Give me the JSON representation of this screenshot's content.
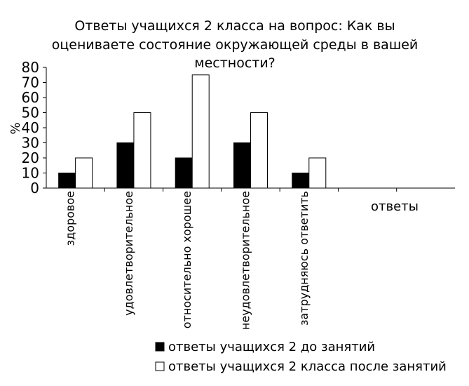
{
  "chart_data": {
    "type": "bar",
    "title_lines": [
      "Ответы учащихся 2 класса на вопрос: Как вы",
      "оцениваете состояние окружающей среды в вашей",
      "местности?"
    ],
    "ylabel": "%",
    "xlabel": "ответы",
    "ylim": [
      0,
      80
    ],
    "yticks": [
      0,
      10,
      20,
      30,
      40,
      50,
      60,
      70,
      80
    ],
    "categories": [
      "здоровое",
      "удовлетворительное",
      "относительно хорошее",
      "неудовлетворительное",
      "затрудняюсь ответить"
    ],
    "series": [
      {
        "name": "ответы учащихся 2 до занятий",
        "color": "#000000",
        "values": [
          10,
          30,
          20,
          30,
          10
        ]
      },
      {
        "name": "ответы учащихся 2 класса после занятий",
        "color": "#ffffff",
        "values": [
          20,
          50,
          75,
          50,
          20
        ]
      }
    ],
    "grid": false,
    "legend_position": "bottom"
  }
}
